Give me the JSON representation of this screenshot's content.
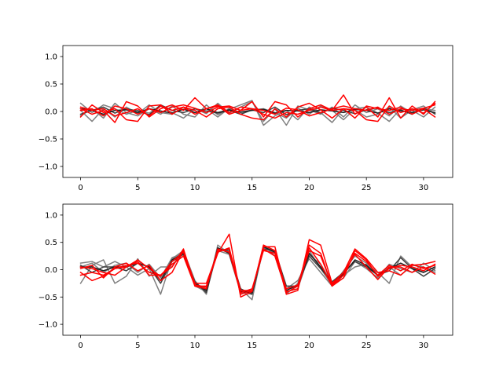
{
  "chart_data": [
    {
      "type": "line",
      "ylim": [
        -1.2,
        1.2
      ],
      "xlim": [
        -1.55,
        32.55
      ],
      "xticks": [
        0,
        5,
        10,
        15,
        20,
        25,
        30
      ],
      "yticks": [
        -1.0,
        -0.5,
        0.0,
        0.5,
        1.0
      ],
      "xtick_labels": [
        "0",
        "5",
        "10",
        "15",
        "20",
        "25",
        "30"
      ],
      "ytick_labels": [
        "−1.0",
        "−0.5",
        "0.0",
        "0.5",
        "1.0"
      ],
      "x": [
        0,
        1,
        2,
        3,
        4,
        5,
        6,
        7,
        8,
        9,
        10,
        11,
        12,
        13,
        14,
        15,
        16,
        17,
        18,
        19,
        20,
        21,
        22,
        23,
        24,
        25,
        26,
        27,
        28,
        29,
        30,
        31
      ],
      "series": [
        {
          "color": "#808080",
          "values": [
            0.15,
            -0.02,
            0.12,
            0.05,
            -0.05,
            0.02,
            -0.03,
            0.1,
            -0.02,
            -0.12,
            0.05,
            -0.04,
            0.15,
            -0.03,
            0.08,
            0.18,
            -0.18,
            0.05,
            -0.25,
            0.1,
            0.03,
            -0.05,
            0.08,
            -0.1,
            0.12,
            -0.02,
            0.05,
            -0.08,
            0.1,
            -0.03,
            0.05,
            0.02
          ]
        },
        {
          "color": "#808080",
          "values": [
            -0.08,
            0.05,
            -0.12,
            0.15,
            -0.02,
            -0.08,
            0.05,
            -0.05,
            0.1,
            -0.05,
            -0.1,
            0.12,
            -0.06,
            0.04,
            0.12,
            0.2,
            -0.25,
            -0.08,
            0.02,
            -0.15,
            0.08,
            -0.02,
            -0.2,
            0.05,
            0.03,
            -0.1,
            -0.05,
            0.08,
            -0.12,
            0.03,
            0.1,
            -0.05
          ]
        },
        {
          "color": "#808080",
          "values": [
            0.02,
            -0.18,
            0.05,
            -0.1,
            0.08,
            -0.04,
            0.12,
            -0.02,
            -0.05,
            0.08,
            -0.02,
            0.05,
            -0.1,
            0.06,
            -0.02,
            0.03,
            0.05,
            -0.02,
            -0.12,
            0.06,
            -0.05,
            0.1,
            0.02,
            -0.15,
            0.05,
            0.08,
            -0.03,
            -0.18,
            0.05,
            0.02,
            -0.1,
            0.08
          ]
        },
        {
          "color": "#404040",
          "values": [
            -0.05,
            0.02,
            0.08,
            -0.03,
            0.05,
            0.01,
            -0.06,
            0.12,
            0.02,
            -0.02,
            0.05,
            0.01,
            -0.03,
            0.02,
            -0.05,
            0.03,
            -0.02,
            0.08,
            -0.06,
            0.02,
            0.05,
            -0.03,
            0.06,
            0.02,
            -0.04,
            0.03,
            0.07,
            -0.02,
            0.03,
            -0.05,
            0.06,
            -0.04
          ]
        },
        {
          "color": "#202020",
          "values": [
            0.05,
            0.02,
            -0.05,
            0.02,
            0.03,
            -0.02,
            0.05,
            0.01,
            -0.03,
            0.04,
            -0.02,
            0.05,
            -0.02,
            0.03,
            -0.01,
            0.02,
            0.04,
            -0.03,
            0.02,
            0.01,
            -0.02,
            0.03,
            0.01,
            -0.02,
            0.04,
            0.02,
            -0.03,
            0.05,
            0.01,
            -0.02,
            0.03,
            -0.02
          ]
        },
        {
          "color": "#ff0000",
          "values": [
            0.05,
            -0.05,
            0.02,
            -0.2,
            0.18,
            0.1,
            -0.1,
            0.05,
            0.12,
            0.02,
            0.25,
            0.05,
            0.1,
            -0.05,
            0.02,
            0.18,
            -0.1,
            0.18,
            0.12,
            -0.1,
            0.05,
            0.12,
            0.02,
            0.3,
            -0.05,
            0.08,
            -0.1,
            0.25,
            -0.12,
            0.1,
            -0.05,
            0.18
          ]
        },
        {
          "color": "#ff0000",
          "values": [
            -0.1,
            0.12,
            -0.02,
            0.05,
            -0.15,
            -0.18,
            0.1,
            0.12,
            -0.05,
            0.08,
            0.02,
            -0.1,
            0.05,
            0.08,
            -0.05,
            -0.12,
            -0.15,
            0.05,
            -0.1,
            0.08,
            0.15,
            0.03,
            -0.12,
            0.05,
            0.02,
            -0.15,
            -0.18,
            0.1,
            -0.02,
            0.05,
            -0.03,
            0.15
          ]
        },
        {
          "color": "#ff0000",
          "values": [
            0.02,
            0.05,
            -0.08,
            0.1,
            0.05,
            -0.05,
            0.05,
            -0.02,
            0.08,
            0.12,
            0.06,
            -0.02,
            0.08,
            0.1,
            0.02,
            0.05,
            -0.05,
            -0.12,
            -0.02,
            -0.05,
            0.02,
            0.08,
            0.02,
            0.05,
            -0.12,
            0.1,
            0.05,
            0.02,
            0.08,
            -0.05,
            0.05,
            -0.1
          ]
        },
        {
          "color": "#ff0000",
          "values": [
            0.08,
            0.02,
            0.05,
            -0.08,
            -0.02,
            0.05,
            -0.08,
            0.1,
            0.02,
            0.08,
            -0.05,
            0.05,
            0.12,
            -0.02,
            0.08,
            0.05,
            0.02,
            -0.05,
            0.06,
            0.03,
            -0.08,
            -0.02,
            0.05,
            0.1,
            0.05,
            0.02,
            0.08,
            -0.05,
            0.05,
            0.02,
            0.06,
            0.12
          ]
        }
      ]
    },
    {
      "type": "line",
      "ylim": [
        -1.2,
        1.2
      ],
      "xlim": [
        -1.55,
        32.55
      ],
      "xticks": [
        0,
        5,
        10,
        15,
        20,
        25,
        30
      ],
      "yticks": [
        -1.0,
        -0.5,
        0.0,
        0.5,
        1.0
      ],
      "xtick_labels": [
        "0",
        "5",
        "10",
        "15",
        "20",
        "25",
        "30"
      ],
      "ytick_labels": [
        "−1.0",
        "−0.5",
        "0.0",
        "0.5",
        "1.0"
      ],
      "x": [
        0,
        1,
        2,
        3,
        4,
        5,
        6,
        7,
        8,
        9,
        10,
        11,
        12,
        13,
        14,
        15,
        16,
        17,
        18,
        19,
        20,
        21,
        22,
        23,
        24,
        25,
        26,
        27,
        28,
        29,
        30,
        31
      ],
      "series": [
        {
          "color": "#808080",
          "values": [
            0.12,
            0.15,
            0.05,
            0.15,
            0.05,
            -0.1,
            0.02,
            -0.45,
            0.2,
            0.35,
            -0.2,
            -0.45,
            0.45,
            0.3,
            -0.35,
            -0.55,
            0.45,
            0.25,
            -0.4,
            -0.35,
            0.28,
            0.1,
            -0.25,
            -0.1,
            0.05,
            0.1,
            -0.05,
            -0.25,
            0.25,
            0.05,
            -0.05,
            0.05
          ]
        },
        {
          "color": "#808080",
          "values": [
            -0.25,
            0.08,
            0.18,
            -0.25,
            -0.12,
            0.2,
            -0.12,
            0.05,
            0.05,
            0.35,
            -0.3,
            -0.4,
            0.35,
            0.28,
            -0.42,
            -0.45,
            0.4,
            0.3,
            -0.35,
            -0.2,
            0.2,
            -0.05,
            -0.3,
            -0.02,
            0.25,
            0.12,
            -0.12,
            0.05,
            -0.1,
            0.08,
            0.05,
            -0.05
          ]
        },
        {
          "color": "#808080",
          "values": [
            0.05,
            0.12,
            -0.05,
            0.08,
            0.12,
            -0.05,
            0.1,
            -0.15,
            0.22,
            0.3,
            -0.25,
            -0.35,
            0.4,
            0.32,
            -0.38,
            -0.4,
            0.42,
            0.35,
            -0.45,
            -0.25,
            0.35,
            0.02,
            -0.28,
            -0.15,
            0.15,
            0.02,
            -0.15,
            0.1,
            0.02,
            -0.05,
            0.12,
            -0.02
          ]
        },
        {
          "color": "#404040",
          "values": [
            0.08,
            -0.05,
            0.05,
            0.05,
            -0.02,
            0.12,
            0.05,
            -0.25,
            0.15,
            0.28,
            -0.22,
            -0.42,
            0.38,
            0.35,
            -0.35,
            -0.45,
            0.38,
            0.35,
            -0.3,
            -0.3,
            0.25,
            0.02,
            -0.22,
            -0.05,
            0.15,
            0.05,
            -0.1,
            -0.02,
            0.22,
            0.02,
            -0.12,
            0.02
          ]
        },
        {
          "color": "#202020",
          "values": [
            0.05,
            0.05,
            -0.02,
            0.05,
            0.05,
            0.12,
            0.05,
            -0.2,
            0.18,
            0.3,
            -0.25,
            -0.38,
            0.4,
            0.3,
            -0.4,
            -0.42,
            0.42,
            0.32,
            -0.38,
            -0.28,
            0.3,
            0.05,
            -0.25,
            -0.08,
            0.18,
            0.08,
            -0.1,
            0.02,
            0.12,
            0.02,
            -0.05,
            0.05
          ]
        },
        {
          "color": "#ff0000",
          "values": [
            -0.05,
            -0.2,
            -0.12,
            0.02,
            0.08,
            0.12,
            -0.05,
            -0.1,
            0.05,
            0.38,
            -0.3,
            -0.3,
            0.3,
            0.65,
            -0.5,
            -0.4,
            0.45,
            0.35,
            -0.45,
            -0.38,
            0.55,
            0.45,
            -0.25,
            -0.05,
            0.38,
            0.2,
            -0.05,
            -0.02,
            -0.1,
            0.08,
            0.1,
            0.15
          ]
        },
        {
          "color": "#ff0000",
          "values": [
            0.02,
            0.08,
            -0.15,
            0.05,
            0.12,
            -0.02,
            0.08,
            -0.2,
            -0.05,
            0.35,
            -0.25,
            -0.25,
            0.32,
            0.4,
            -0.45,
            -0.38,
            0.42,
            0.42,
            -0.42,
            -0.3,
            0.45,
            0.3,
            -0.3,
            -0.1,
            0.3,
            0.15,
            -0.1,
            0.08,
            -0.02,
            0.1,
            0.02,
            0.08
          ]
        },
        {
          "color": "#ff0000",
          "values": [
            -0.1,
            -0.05,
            -0.1,
            0.02,
            0.05,
            0.15,
            -0.1,
            -0.1,
            0.1,
            0.25,
            -0.3,
            -0.35,
            0.38,
            0.32,
            -0.42,
            -0.35,
            0.35,
            0.3,
            -0.35,
            -0.28,
            0.35,
            0.25,
            -0.28,
            -0.05,
            0.28,
            0.05,
            -0.18,
            0.05,
            0.05,
            -0.05,
            0.05,
            -0.08
          ]
        },
        {
          "color": "#ff0000",
          "values": [
            0.05,
            0.02,
            -0.05,
            -0.1,
            0.05,
            0.18,
            0.02,
            -0.12,
            0.15,
            0.32,
            -0.28,
            -0.32,
            0.35,
            0.38,
            -0.38,
            -0.38,
            0.38,
            0.25,
            -0.4,
            -0.35,
            0.4,
            0.1,
            -0.3,
            -0.15,
            0.35,
            0.18,
            -0.12,
            0.02,
            0.08,
            0.05,
            -0.02,
            0.1
          ]
        }
      ]
    }
  ]
}
